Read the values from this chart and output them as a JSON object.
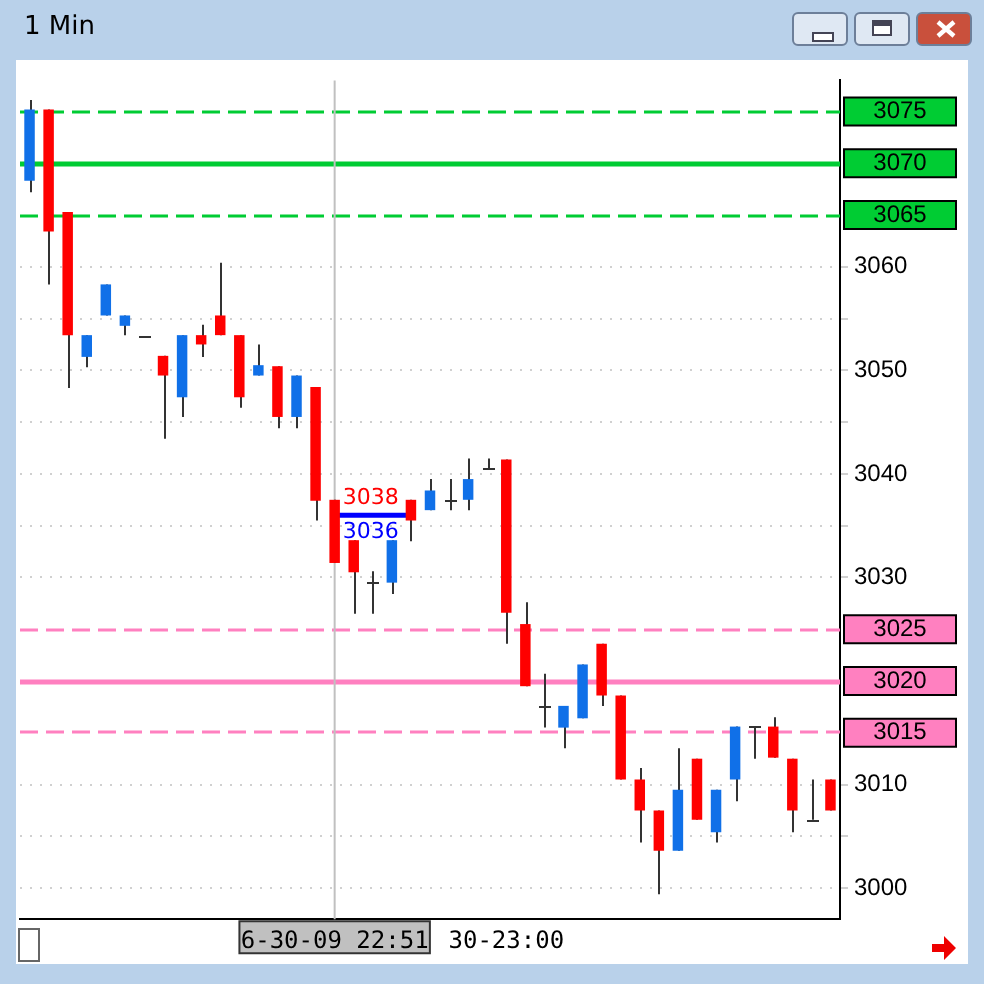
{
  "chart_data": {
    "type": "candlestick",
    "title": "1 Min",
    "categories": [
      null,
      null,
      null,
      null,
      null,
      null,
      null,
      null,
      null,
      null,
      null,
      null,
      null,
      null,
      null,
      null,
      "6-30-09 22:51",
      null,
      null,
      null,
      null,
      null,
      null,
      null,
      null,
      "30-23:00",
      null,
      null,
      null,
      null,
      null,
      null,
      null,
      null,
      null,
      null,
      null,
      null,
      null,
      null,
      null,
      null,
      null
    ],
    "ohlc": [
      [
        3068.3,
        3076.1,
        3067.2,
        3075.2
      ],
      [
        3075.2,
        3075.2,
        3058.3,
        3063.4
      ],
      [
        3065.3,
        3065.3,
        3048.3,
        3053.4
      ],
      [
        3051.3,
        3053.4,
        3050.3,
        3053.4
      ],
      [
        3055.3,
        3058.3,
        3055.3,
        3058.3
      ],
      [
        3054.3,
        3055.3,
        3053.4,
        3055.3
      ],
      [
        3053.4,
        3053.4,
        3053.4,
        3053.4
      ],
      [
        3051.4,
        3051.4,
        3043.4,
        3049.5
      ],
      [
        3047.4,
        3053.4,
        3045.5,
        3053.4
      ],
      [
        3053.4,
        3054.4,
        3051.3,
        3052.5
      ],
      [
        3055.3,
        3060.4,
        3053.4,
        3053.4
      ],
      [
        3053.4,
        3053.4,
        3046.4,
        3047.4
      ],
      [
        3049.5,
        3052.5,
        3049.5,
        3050.5
      ],
      [
        3050.4,
        3050.4,
        3044.4,
        3045.5
      ],
      [
        3045.5,
        3049.5,
        3044.4,
        3049.5
      ],
      [
        3048.4,
        3048.4,
        3035.5,
        3037.4
      ],
      [
        3037.5,
        3037.5,
        3031.4,
        3031.4
      ],
      [
        3033.6,
        3033.6,
        3026.5,
        3030.5
      ],
      [
        3029.5,
        3030.6,
        3026.5,
        3029.5
      ],
      [
        3029.5,
        3033.6,
        3028.4,
        3033.6
      ],
      [
        3037.5,
        3037.5,
        3033.5,
        3035.5
      ],
      [
        3036.5,
        3039.5,
        3036.5,
        3038.4
      ],
      [
        3037.5,
        3039.5,
        3036.5,
        3037.5
      ],
      [
        3037.5,
        3041.5,
        3036.5,
        3039.5
      ],
      [
        3040.5,
        3041.5,
        3040.5,
        3040.5
      ],
      [
        3041.4,
        3041.4,
        3023.6,
        3026.6
      ],
      [
        3025.5,
        3027.6,
        3019.5,
        3019.5
      ],
      [
        3017.6,
        3020.7,
        3015.5,
        3017.6
      ],
      [
        3015.5,
        3017.6,
        3013.5,
        3017.6
      ],
      [
        3016.4,
        3021.6,
        3016.4,
        3021.6
      ],
      [
        3023.6,
        3023.6,
        3017.6,
        3018.6
      ],
      [
        3018.6,
        3018.6,
        3010.5,
        3010.5
      ],
      [
        3010.5,
        3011.6,
        3004.4,
        3007.5
      ],
      [
        3007.5,
        3007.5,
        2999.4,
        3003.6
      ],
      [
        3003.6,
        3013.5,
        3003.6,
        3009.5
      ],
      [
        3012.5,
        3012.5,
        3006.6,
        3006.6
      ],
      [
        3005.4,
        3009.5,
        3004.4,
        3009.5
      ],
      [
        3010.5,
        3015.6,
        3008.4,
        3015.6
      ],
      [
        3015.6,
        3015.6,
        3012.5,
        3015.6
      ],
      [
        3015.6,
        3016.5,
        3012.6,
        3012.6
      ],
      [
        3012.5,
        3012.5,
        3005.4,
        3007.5
      ],
      [
        3006.6,
        3010.5,
        3006.6,
        3006.6
      ],
      [
        3010.5,
        3010.5,
        3007.5,
        3007.5
      ]
    ],
    "colors": [
      "#1070e8",
      "#ff0000",
      "#ff0000",
      "#1070e8",
      "#1070e8",
      "#1070e8",
      "#333333",
      "#ff0000",
      "#1070e8",
      "#ff0000",
      "#ff0000",
      "#ff0000",
      "#1070e8",
      "#ff0000",
      "#1070e8",
      "#ff0000",
      "#ff0000",
      "#ff0000",
      "#333333",
      "#1070e8",
      "#ff0000",
      "#1070e8",
      "#333333",
      "#1070e8",
      "#333333",
      "#ff0000",
      "#ff0000",
      "#333333",
      "#1070e8",
      "#1070e8",
      "#ff0000",
      "#ff0000",
      "#ff0000",
      "#ff0000",
      "#1070e8",
      "#ff0000",
      "#1070e8",
      "#1070e8",
      "#333333",
      "#ff0000",
      "#ff0000",
      "#333333",
      "#ff0000"
    ],
    "ylim": [
      2997,
      3078
    ],
    "yticks": [
      3000,
      {
        "value": 3005,
        "label": null
      },
      3010,
      3030,
      {
        "value": 3035,
        "label": null
      },
      3040,
      {
        "value": 3045,
        "label": null
      },
      3050,
      {
        "value": 3055,
        "label": null
      },
      3060
    ],
    "grid": "y",
    "legend": false,
    "ref_lines": [
      {
        "axis": "y",
        "value": 3075,
        "label": "3075",
        "color": "#00cc33",
        "line_style": "dashed"
      },
      {
        "axis": "y",
        "value": 3070,
        "label": "3070",
        "color": "#00cc33",
        "line_style": "solid"
      },
      {
        "axis": "y",
        "value": 3065,
        "label": "3065",
        "color": "#00cc33",
        "line_style": "dashed"
      },
      {
        "axis": "y",
        "value": 3025,
        "label": "3025",
        "color": "#ff80c0",
        "line_style": "dashed"
      },
      {
        "axis": "y",
        "value": 3020,
        "label": "3020",
        "color": "#ff80c0",
        "line_style": "solid"
      },
      {
        "axis": "y",
        "value": 3015,
        "label": "3015",
        "color": "#ff80c0",
        "line_style": "dashed"
      },
      {
        "axis": "x",
        "value": "6-30-09 22:51",
        "label": null,
        "color": "#c0c0c0",
        "line_style": "solid"
      },
      {
        "axis": "y",
        "value": 3036,
        "label": "3036",
        "color": "#0000ff",
        "line_style": "solid"
      }
    ],
    "annotations": [
      "3038"
    ]
  }
}
